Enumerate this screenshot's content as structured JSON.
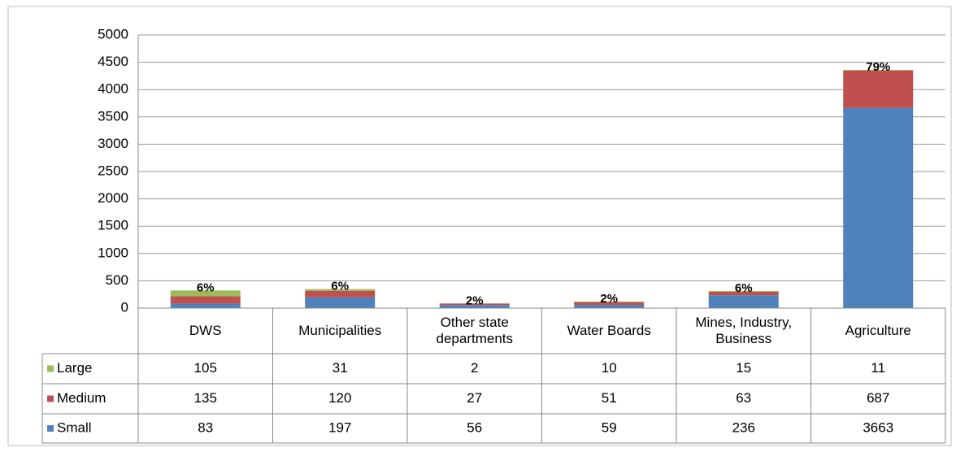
{
  "chart_data": {
    "type": "stacked_bar",
    "categories": [
      "DWS",
      "Municipalities",
      "Other state departments",
      "Water Boards",
      "Mines, Industry, Business",
      "Agriculture"
    ],
    "series": [
      {
        "name": "Large",
        "color": "#9bbb59",
        "values": [
          105,
          31,
          2,
          10,
          15,
          11
        ]
      },
      {
        "name": "Medium",
        "color": "#c0504d",
        "values": [
          135,
          120,
          27,
          51,
          63,
          687
        ]
      },
      {
        "name": "Small",
        "color": "#4f81bd",
        "values": [
          83,
          197,
          56,
          59,
          236,
          3663
        ]
      }
    ],
    "annotations": [
      "6%",
      "6%",
      "2%",
      "2%",
      "6%",
      "79%"
    ],
    "ylim": [
      0,
      5000
    ],
    "yticks": [
      0,
      500,
      1000,
      1500,
      2000,
      2500,
      3000,
      3500,
      4000,
      4500,
      5000
    ],
    "grid": true
  }
}
